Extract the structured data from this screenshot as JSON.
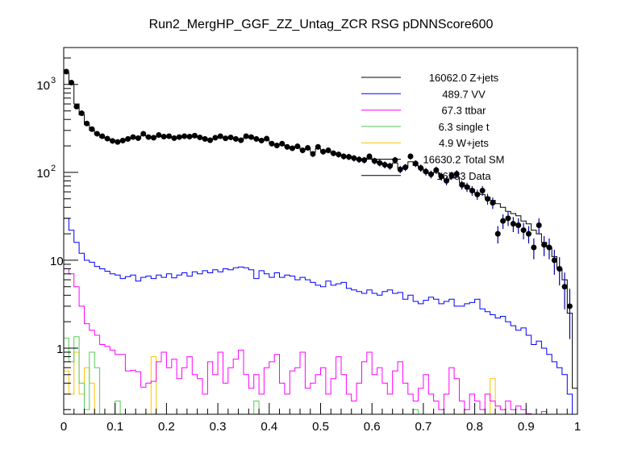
{
  "chart_data": {
    "type": "bar",
    "title": "Run2_MergHP_GGF_ZZ_Untag_ZCR RSG  pDNNScore600",
    "xlabel": "",
    "ylabel": "",
    "xlim": [
      0,
      1
    ],
    "ylim": [
      0.177,
      2630
    ],
    "yscale": "log",
    "grid": false,
    "legend_position": "top-right",
    "n_bins": 100,
    "x_ticks": [
      "0",
      "0.1",
      "0.2",
      "0.3",
      "0.4",
      "0.5",
      "0.6",
      "0.7",
      "0.8",
      "0.9",
      "1"
    ],
    "x_tick_values": [
      0,
      0.1,
      0.2,
      0.3,
      0.4,
      0.5,
      0.6,
      0.7,
      0.8,
      0.9,
      1
    ],
    "y_ticks": [
      {
        "label": "10",
        "exp": "3",
        "value": 1000
      },
      {
        "label": "10",
        "exp": "2",
        "value": 100
      },
      {
        "label": "10",
        "exp": "",
        "value": 10
      },
      {
        "label": "1",
        "exp": "",
        "value": 1
      }
    ],
    "legend": [
      {
        "text": "16062.0 Z+jets",
        "color": "#000000"
      },
      {
        "text": "489.7 VV",
        "color": "#0000ff"
      },
      {
        "text": "67.3 ttbar",
        "color": "#ff00ff"
      },
      {
        "text": "6.3 single t",
        "color": "#55cc55"
      },
      {
        "text": "4.9 W+jets",
        "color": "#ffc000"
      },
      {
        "text": "16630.2 Total SM",
        "color": "#000000"
      },
      {
        "text": "16783 Data",
        "color": "#000000"
      }
    ],
    "series": [
      {
        "name": "Z+jets",
        "color": "#000000",
        "values": [
          1350,
          1000,
          600,
          450,
          350,
          300,
          270,
          250,
          240,
          230,
          225,
          228,
          238,
          245,
          242,
          262,
          250,
          245,
          258,
          252,
          255,
          245,
          250,
          252,
          252,
          255,
          248,
          240,
          236,
          242,
          250,
          244,
          246,
          238,
          236,
          250,
          246,
          238,
          230,
          236,
          212,
          206,
          206,
          196,
          190,
          196,
          182,
          186,
          170,
          186,
          170,
          170,
          164,
          160,
          154,
          150,
          146,
          140,
          140,
          146,
          134,
          130,
          124,
          120,
          128,
          112,
          114,
          132,
          120,
          112,
          100,
          96,
          100,
          90,
          82,
          86,
          88,
          76,
          70,
          64,
          58,
          56,
          52,
          48,
          44,
          40,
          36,
          34,
          32,
          28,
          26,
          22,
          20,
          16,
          14,
          11,
          8,
          6,
          2.5,
          0.35
        ]
      },
      {
        "name": "VV",
        "color": "#0000ff",
        "values": [
          30,
          22,
          16,
          12,
          10,
          9.5,
          8.5,
          8,
          7.5,
          7,
          6.8,
          6.2,
          6.5,
          6.8,
          5.8,
          6.4,
          6.6,
          6.2,
          6.8,
          6.4,
          7,
          6.3,
          6.8,
          7.2,
          6.6,
          7.4,
          7,
          7.6,
          7.2,
          7.8,
          7.4,
          8,
          7.8,
          8.2,
          8.4,
          8.2,
          7.8,
          6.2,
          7.6,
          7,
          6.4,
          7.2,
          6.4,
          6.8,
          6.6,
          6,
          6.4,
          6,
          5.6,
          5.2,
          5,
          5.8,
          5.2,
          5.4,
          5.6,
          4.8,
          4.6,
          4.4,
          4.2,
          4.6,
          4.2,
          4,
          4.4,
          4.6,
          4.2,
          4.3,
          3.6,
          4,
          3.4,
          3.2,
          3.5,
          3.8,
          3.6,
          3.2,
          3.4,
          3.6,
          3,
          3,
          3.2,
          3.3,
          3.6,
          2.8,
          2.6,
          2.4,
          2.2,
          2.3,
          2,
          1.8,
          1.6,
          1.7,
          1.4,
          1.1,
          1.2,
          1,
          0.85,
          0.7,
          0.6,
          0.5,
          0.3,
          0
        ]
      },
      {
        "name": "ttbar",
        "color": "#ff00ff",
        "values": [
          8,
          7,
          5,
          3,
          1.9,
          1.6,
          1.4,
          1.1,
          1.05,
          0.95,
          0.85,
          0.85,
          0.55,
          0.56,
          0.54,
          0.36,
          0.4,
          0.42,
          0.7,
          0.9,
          0.6,
          0.75,
          0.45,
          0.6,
          0.8,
          0.5,
          0.45,
          0.3,
          0.7,
          0.5,
          0.9,
          0.4,
          0.6,
          0.75,
          0.95,
          0.5,
          0.35,
          0.5,
          0.3,
          0.6,
          0.7,
          0.85,
          0.4,
          0.3,
          0.55,
          0.6,
          0.9,
          0.35,
          0.4,
          0.5,
          0.6,
          0.3,
          0.45,
          0.8,
          0.5,
          0.3,
          0.25,
          0.4,
          0.7,
          0.9,
          0.5,
          0.6,
          0.4,
          0.3,
          0.55,
          0.7,
          0.4,
          0.3,
          0.25,
          0.35,
          0.5,
          0.3,
          0.25,
          0.2,
          0.3,
          0.6,
          0.45,
          0.25,
          0.2,
          0.3,
          0.25,
          0.2,
          0.3,
          0.25,
          0.22,
          0.2,
          0.25,
          0.2,
          0.22,
          0.2,
          0.18,
          0,
          0,
          0.19,
          0,
          0,
          0,
          0,
          0,
          0
        ]
      },
      {
        "name": "single t",
        "color": "#55cc55",
        "values": [
          1.3,
          0.7,
          1.35,
          0.4,
          0.2,
          0.9,
          0.6,
          0,
          0,
          0,
          0.25,
          0,
          0,
          0,
          0,
          0,
          0,
          0,
          0,
          0,
          0,
          0,
          0,
          0,
          0,
          0,
          0,
          0,
          0,
          0,
          0,
          0,
          0,
          0,
          0,
          0,
          0,
          0.25,
          0,
          0,
          0,
          0,
          0,
          0,
          0,
          0,
          0,
          0,
          0,
          0,
          0,
          0,
          0,
          0,
          0,
          0,
          0,
          0,
          0,
          0,
          0,
          0,
          0,
          0,
          0,
          0,
          0,
          0,
          0.2,
          0,
          0,
          0,
          0,
          0,
          0,
          0,
          0,
          0,
          0,
          0,
          0,
          0,
          0,
          0,
          0,
          0,
          0,
          0,
          0,
          0,
          0,
          0,
          0,
          0,
          0,
          0,
          0,
          0,
          0,
          0
        ]
      },
      {
        "name": "W+jets",
        "color": "#ffc000",
        "values": [
          0.55,
          0.3,
          0.9,
          0.3,
          0.6,
          0.4,
          0,
          0,
          0,
          0,
          0,
          0,
          0,
          0,
          0,
          0,
          0,
          0.8,
          0,
          0,
          0,
          0,
          0,
          0,
          0,
          0,
          0,
          0,
          0,
          0,
          0,
          0,
          0,
          0,
          0,
          0,
          0,
          0,
          0,
          0,
          0,
          0,
          0,
          0,
          0,
          0,
          0,
          0,
          0,
          0,
          0,
          0,
          0,
          0,
          0,
          0,
          0,
          0,
          0,
          0,
          0,
          0,
          0,
          0,
          0,
          0,
          0,
          0,
          0,
          0,
          0,
          0,
          0,
          0,
          0,
          0,
          0,
          0,
          0,
          0,
          0,
          0,
          0,
          0.45,
          0,
          0,
          0,
          0,
          0,
          0,
          0,
          0,
          0,
          0,
          0,
          0,
          0,
          0,
          0,
          0
        ]
      }
    ],
    "data_points": {
      "name": "Data",
      "values": [
        1400,
        1050,
        560,
        470,
        360,
        310,
        275,
        258,
        242,
        228,
        222,
        230,
        240,
        252,
        245,
        275,
        252,
        248,
        266,
        255,
        258,
        245,
        252,
        258,
        255,
        262,
        250,
        240,
        232,
        248,
        258,
        244,
        250,
        240,
        232,
        258,
        252,
        240,
        230,
        242,
        212,
        202,
        212,
        195,
        188,
        198,
        178,
        190,
        162,
        195,
        172,
        178,
        165,
        160,
        152,
        150,
        145,
        140,
        138,
        152,
        135,
        128,
        122,
        118,
        138,
        108,
        114,
        152,
        126,
        112,
        102,
        95,
        106,
        90,
        80,
        92,
        96,
        72,
        68,
        62,
        56,
        62,
        50,
        45,
        20,
        28,
        30,
        26,
        25,
        22,
        20,
        14,
        25,
        15,
        14,
        10,
        8,
        5,
        3,
        0
      ]
    }
  }
}
